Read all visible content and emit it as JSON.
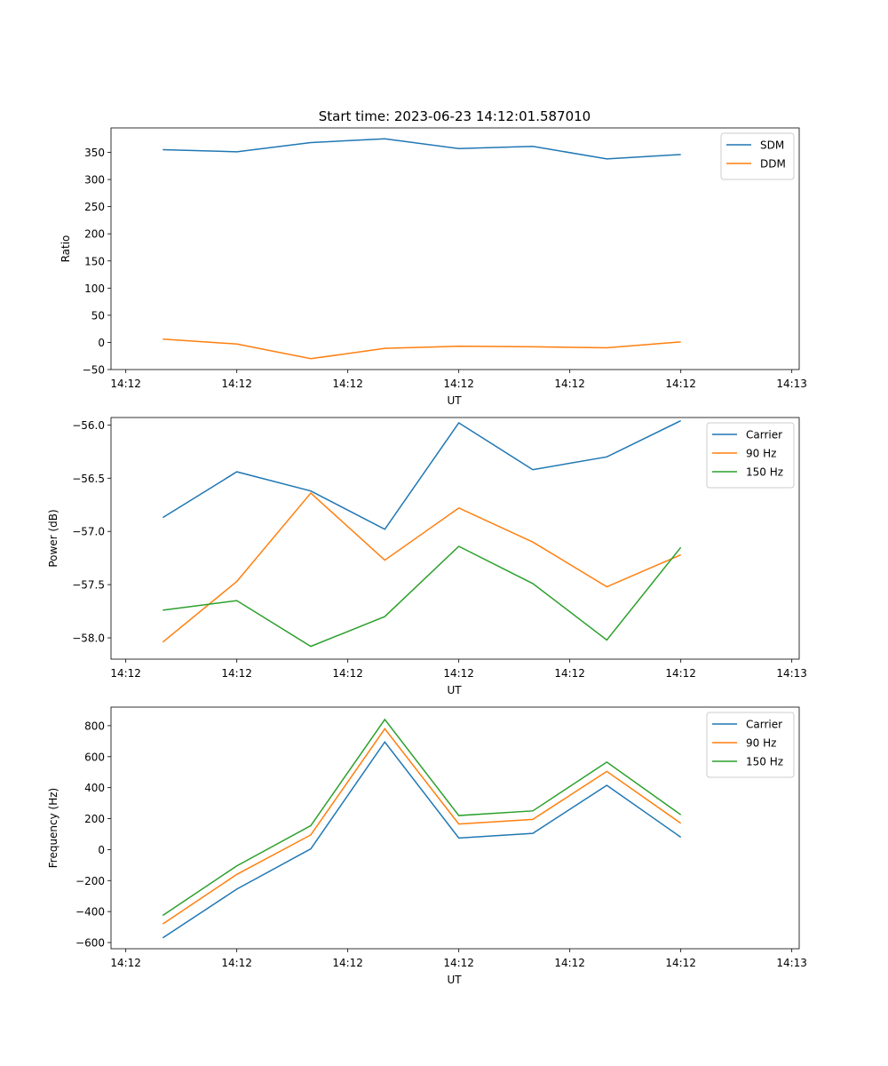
{
  "figure": {
    "title": "Start time: 2023-06-23 14:12:01.587010"
  },
  "chart_data": [
    {
      "type": "line",
      "title": "Start time: 2023-06-23 14:12:01.587010",
      "xlabel": "UT",
      "ylabel": "Ratio",
      "xlim": [
        -0.7,
        8.6
      ],
      "x_tick_values": [
        -0.5,
        1,
        2.5,
        4,
        5.5,
        7,
        8.5
      ],
      "x_tick_labels": [
        "14:12",
        "14:12",
        "14:12",
        "14:12",
        "14:12",
        "14:12",
        "14:13"
      ],
      "ylim": [
        -50,
        395
      ],
      "y_ticks": [
        -50,
        0,
        50,
        100,
        150,
        200,
        250,
        300,
        350
      ],
      "x": [
        0,
        1,
        2,
        3,
        4,
        5,
        6,
        7
      ],
      "legend": "top-right",
      "grid": false,
      "series": [
        {
          "name": "SDM",
          "color": "#1f77b4",
          "values": [
            355,
            351,
            368,
            375,
            357,
            361,
            338,
            346
          ]
        },
        {
          "name": "DDM",
          "color": "#ff7f0e",
          "values": [
            6,
            -3,
            -30,
            -11,
            -7,
            -8,
            -10,
            1
          ]
        }
      ]
    },
    {
      "type": "line",
      "xlabel": "UT",
      "ylabel": "Power (dB)",
      "xlim": [
        -0.7,
        8.6
      ],
      "x_tick_values": [
        -0.5,
        1,
        2.5,
        4,
        5.5,
        7,
        8.5
      ],
      "x_tick_labels": [
        "14:12",
        "14:12",
        "14:12",
        "14:12",
        "14:12",
        "14:12",
        "14:13"
      ],
      "ylim": [
        -58.2,
        -55.93
      ],
      "y_ticks": [
        -58.0,
        -57.5,
        -57.0,
        -56.5,
        -56.0
      ],
      "y_tick_labels": [
        "−58.0",
        "−57.5",
        "−57.0",
        "−56.5",
        "−56.0"
      ],
      "x": [
        0,
        1,
        2,
        3,
        4,
        5,
        6,
        7
      ],
      "legend": "top-right",
      "grid": false,
      "series": [
        {
          "name": "Carrier",
          "color": "#1f77b4",
          "values": [
            -56.87,
            -56.44,
            -56.62,
            -56.98,
            -55.98,
            -56.42,
            -56.3,
            -55.96
          ]
        },
        {
          "name": "90 Hz",
          "color": "#ff7f0e",
          "values": [
            -58.04,
            -57.47,
            -56.64,
            -57.27,
            -56.78,
            -57.1,
            -57.52,
            -57.22
          ]
        },
        {
          "name": "150 Hz",
          "color": "#2ca02c",
          "values": [
            -57.74,
            -57.65,
            -58.08,
            -57.8,
            -57.14,
            -57.49,
            -58.02,
            -57.15
          ]
        }
      ]
    },
    {
      "type": "line",
      "xlabel": "UT",
      "ylabel": "Frequency (Hz)",
      "xlim": [
        -0.7,
        8.6
      ],
      "x_tick_values": [
        -0.5,
        1,
        2.5,
        4,
        5.5,
        7,
        8.5
      ],
      "x_tick_labels": [
        "14:12",
        "14:12",
        "14:12",
        "14:12",
        "14:12",
        "14:12",
        "14:13"
      ],
      "ylim": [
        -640,
        920
      ],
      "y_ticks": [
        -600,
        -400,
        -200,
        0,
        200,
        400,
        600,
        800
      ],
      "y_tick_labels": [
        "−600",
        "−400",
        "−200",
        "0",
        "200",
        "400",
        "600",
        "800"
      ],
      "x": [
        0,
        1,
        2,
        3,
        4,
        5,
        6,
        7
      ],
      "legend": "top-right",
      "grid": false,
      "series": [
        {
          "name": "Carrier",
          "color": "#1f77b4",
          "values": [
            -570,
            -255,
            5,
            695,
            75,
            105,
            415,
            80
          ]
        },
        {
          "name": "90 Hz",
          "color": "#ff7f0e",
          "values": [
            -480,
            -160,
            95,
            780,
            165,
            195,
            505,
            170
          ]
        },
        {
          "name": "150 Hz",
          "color": "#2ca02c",
          "values": [
            -425,
            -105,
            155,
            840,
            220,
            250,
            565,
            225
          ]
        }
      ]
    }
  ]
}
